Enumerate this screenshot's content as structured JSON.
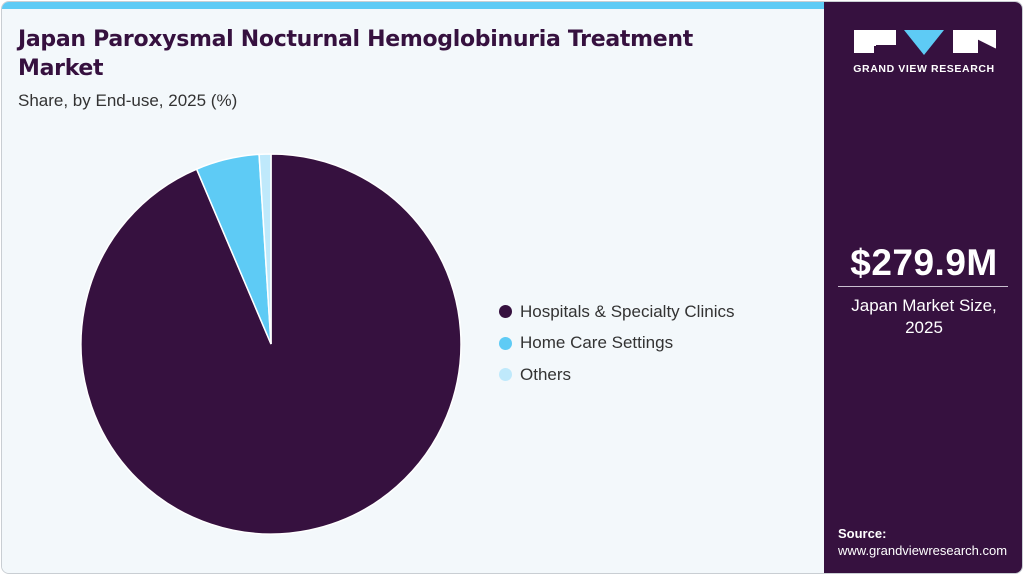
{
  "header": {
    "title": "Japan Paroxysmal Nocturnal Hemoglobinuria Treatment Market",
    "subtitle": "Share, by End-use, 2025 (%)"
  },
  "legend": [
    {
      "label": "Hospitals & Specialty Clinics",
      "color": "#36113f"
    },
    {
      "label": "Home Care Settings",
      "color": "#5ecbf5"
    },
    {
      "label": "Others",
      "color": "#bfe9fb"
    }
  ],
  "sidebar": {
    "brand": "GRAND VIEW RESEARCH",
    "market_value": "$279.9M",
    "market_label": "Japan Market Size, 2025",
    "source_label": "Source:",
    "source_url": "www.grandviewresearch.com"
  },
  "colors": {
    "accent": "#5ecbf5",
    "brand": "#36113f",
    "background": "#f3f8fb"
  },
  "chart_data": {
    "type": "pie",
    "title": "Japan Paroxysmal Nocturnal Hemoglobinuria Treatment Market",
    "subtitle": "Share, by End-use, 2025 (%)",
    "categories": [
      "Hospitals & Specialty Clinics",
      "Home Care Settings",
      "Others"
    ],
    "values": [
      93.6,
      5.4,
      1.0
    ],
    "colors": [
      "#36113f",
      "#5ecbf5",
      "#bfe9fb"
    ],
    "legend_position": "right",
    "start_angle": "12 o'clock, clockwise"
  }
}
